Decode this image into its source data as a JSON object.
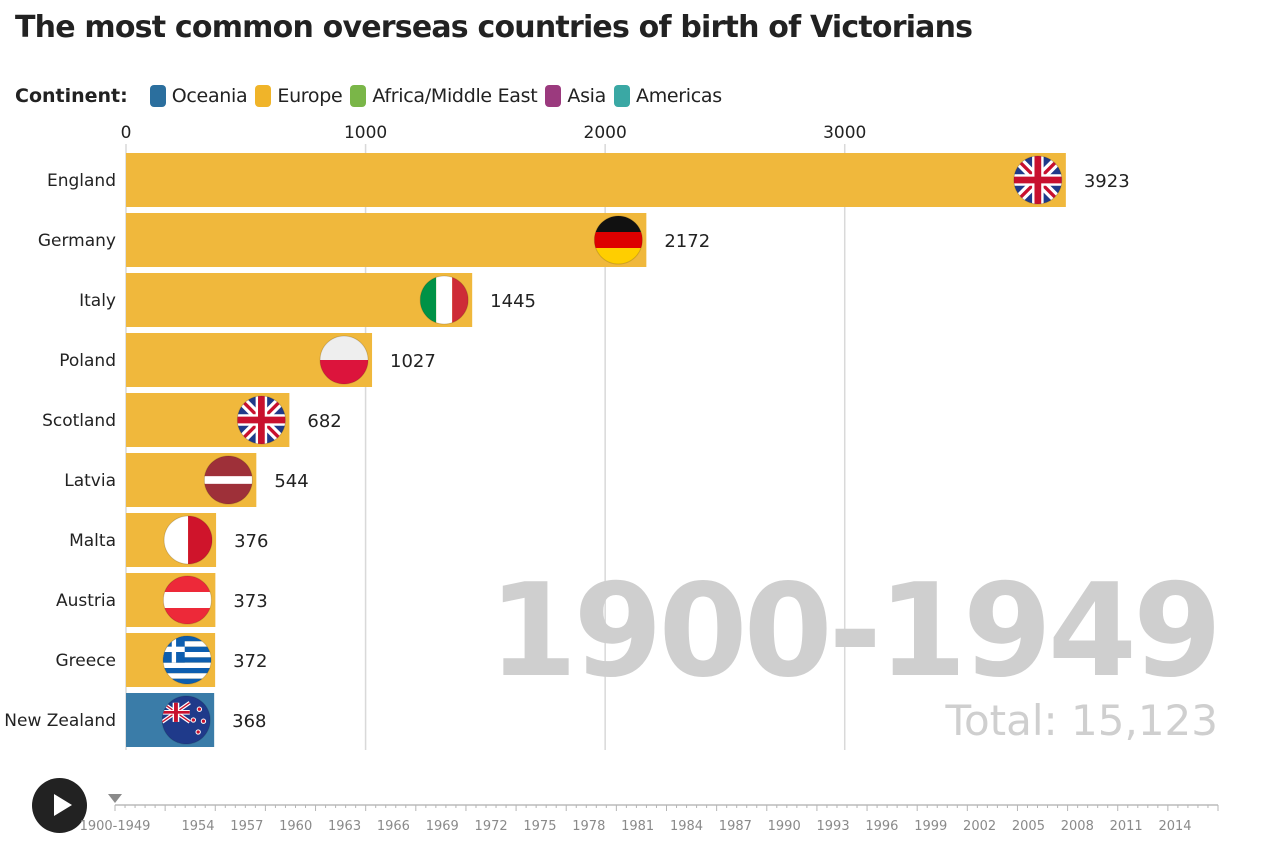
{
  "title": "The most common overseas countries of birth of Victorians",
  "legend": {
    "title": "Continent:",
    "items": [
      {
        "label": "Oceania",
        "color": "#2b6f9e"
      },
      {
        "label": "Europe",
        "color": "#f0b429"
      },
      {
        "label": "Africa/Middle East",
        "color": "#7ab648"
      },
      {
        "label": "Asia",
        "color": "#9b3a7e"
      },
      {
        "label": "Americas",
        "color": "#3aa8a4"
      }
    ]
  },
  "chart_data": {
    "type": "bar",
    "orientation": "horizontal",
    "title": "The most common overseas countries of birth of Victorians",
    "categories": [
      "England",
      "Germany",
      "Italy",
      "Poland",
      "Scotland",
      "Latvia",
      "Malta",
      "Austria",
      "Greece",
      "New Zealand"
    ],
    "values": [
      3923,
      2172,
      1445,
      1027,
      682,
      544,
      376,
      373,
      372,
      368
    ],
    "value_labels": [
      "3923",
      "2172",
      "1445",
      "1027",
      "682",
      "544",
      "376",
      "373",
      "372",
      "368"
    ],
    "continents": [
      "Europe",
      "Europe",
      "Europe",
      "Europe",
      "Europe",
      "Europe",
      "Europe",
      "Europe",
      "Europe",
      "Oceania"
    ],
    "flags": [
      "flag-uk-icon",
      "flag-germany-icon",
      "flag-italy-icon",
      "flag-poland-icon",
      "flag-uk-icon",
      "flag-latvia-icon",
      "flag-malta-icon",
      "flag-austria-icon",
      "flag-greece-icon",
      "flag-new-zealand-icon"
    ],
    "bar_colors": {
      "Europe": "#f0b83c",
      "Oceania": "#3a7ca8"
    },
    "xlim": [
      0,
      4700
    ],
    "xticks": [
      0,
      1000,
      2000,
      3000
    ],
    "xtick_labels": [
      "0",
      "1000",
      "2000",
      "3000"
    ],
    "grid": true
  },
  "period": "1900-1949",
  "total": "Total: 15,123",
  "timeline": {
    "labels": [
      "1900-1949",
      "1954",
      "1957",
      "1960",
      "1963",
      "1966",
      "1969",
      "1972",
      "1975",
      "1978",
      "1981",
      "1984",
      "1987",
      "1990",
      "1993",
      "1996",
      "1999",
      "2002",
      "2005",
      "2008",
      "2011",
      "2014"
    ],
    "current": "1900-1949"
  }
}
